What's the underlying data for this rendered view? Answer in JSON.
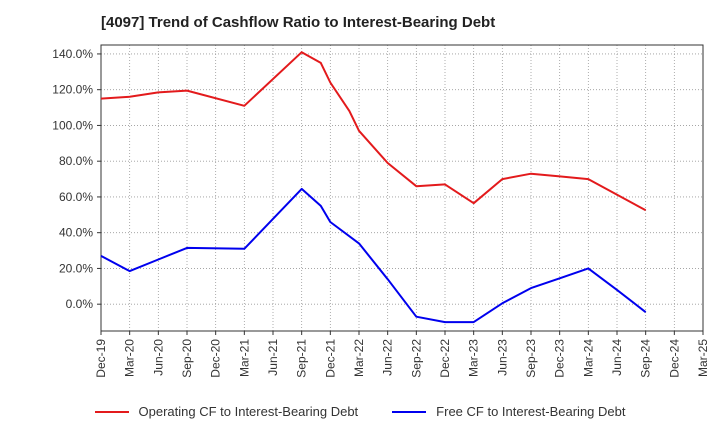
{
  "title": "[4097]  Trend of Cashflow Ratio to Interest-Bearing Debt",
  "chart_data": {
    "type": "line",
    "x": [
      "Dec-19",
      "Mar-20",
      "Jun-20",
      "Sep-20",
      "Dec-20",
      "Mar-21",
      "Jun-21",
      "Sep-21",
      "Dec-21",
      "Mar-22",
      "Jun-22",
      "Sep-22",
      "Dec-22",
      "Mar-23",
      "Jun-23",
      "Sep-23",
      "Dec-23",
      "Mar-24",
      "Jun-24",
      "Sep-24",
      "Dec-24",
      "Mar-25"
    ],
    "ylim": [
      -15,
      145
    ],
    "yticks": [
      0,
      20,
      40,
      60,
      80,
      100,
      120,
      140
    ],
    "ytick_labels": [
      "0.0%",
      "20.0%",
      "40.0%",
      "60.0%",
      "80.0%",
      "100.0%",
      "120.0%",
      "140.0%"
    ],
    "grid": true,
    "legend_position": "bottom",
    "series": [
      {
        "name": "Operating CF to Interest-Bearing Debt",
        "color": "#e31a1c",
        "points": [
          [
            "Dec-19",
            115.0
          ],
          [
            "Mar-20",
            116.0
          ],
          [
            "Jun-20",
            118.5
          ],
          [
            "Sep-20",
            119.5
          ],
          [
            "Mar-21",
            111.0
          ],
          [
            "Sep-21",
            141.0
          ],
          [
            "Nov-21",
            135.0
          ],
          [
            "Dec-21",
            124.0
          ],
          [
            "Feb-22",
            108.0
          ],
          [
            "Mar-22",
            97.0
          ],
          [
            "Jun-22",
            79.0
          ],
          [
            "Sep-22",
            66.0
          ],
          [
            "Dec-22",
            67.0
          ],
          [
            "Mar-23",
            56.5
          ],
          [
            "Jun-23",
            70.0
          ],
          [
            "Sep-23",
            73.0
          ],
          [
            "Dec-23",
            71.5
          ],
          [
            "Mar-24",
            70.0
          ],
          [
            "Sep-24",
            52.5
          ]
        ]
      },
      {
        "name": "Free CF to Interest-Bearing Debt",
        "color": "#0000ee",
        "points": [
          [
            "Dec-19",
            27.0
          ],
          [
            "Mar-20",
            18.5
          ],
          [
            "Jun-20",
            25.0
          ],
          [
            "Sep-20",
            31.5
          ],
          [
            "Mar-21",
            31.0
          ],
          [
            "Sep-21",
            64.5
          ],
          [
            "Nov-21",
            55.0
          ],
          [
            "Dec-21",
            46.0
          ],
          [
            "Mar-22",
            34.0
          ],
          [
            "Jun-22",
            14.0
          ],
          [
            "Sep-22",
            -7.0
          ],
          [
            "Dec-22",
            -10.0
          ],
          [
            "Mar-23",
            -10.0
          ],
          [
            "Jun-23",
            0.5
          ],
          [
            "Sep-23",
            9.0
          ],
          [
            "Dec-23",
            14.5
          ],
          [
            "Mar-24",
            20.0
          ],
          [
            "Jun-24",
            8.0
          ],
          [
            "Sep-24",
            -4.5
          ]
        ]
      }
    ]
  }
}
